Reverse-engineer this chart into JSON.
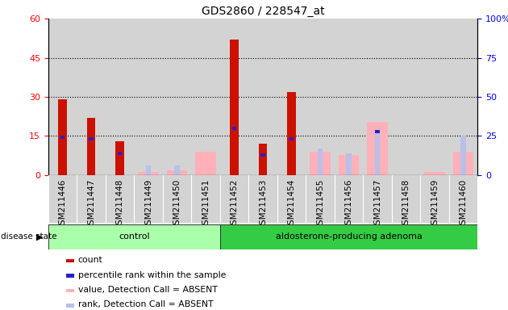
{
  "title": "GDS2860 / 228547_at",
  "samples": [
    "GSM211446",
    "GSM211447",
    "GSM211448",
    "GSM211449",
    "GSM211450",
    "GSM211451",
    "GSM211452",
    "GSM211453",
    "GSM211454",
    "GSM211455",
    "GSM211456",
    "GSM211457",
    "GSM211458",
    "GSM211459",
    "GSM211460"
  ],
  "count": [
    29,
    22,
    13,
    0,
    0,
    0,
    52,
    12,
    32,
    0,
    0,
    0,
    0,
    0,
    0
  ],
  "percentile_rank": [
    24,
    23,
    14,
    0,
    0,
    0,
    30,
    13,
    23,
    0,
    0,
    28,
    0,
    0,
    0
  ],
  "value_absent": [
    0,
    0,
    0,
    2,
    3,
    15,
    0,
    0,
    0,
    15,
    13,
    34,
    0,
    2,
    15
  ],
  "rank_absent": [
    0,
    0,
    0,
    6,
    6,
    0,
    0,
    0,
    0,
    17,
    14,
    27,
    0,
    0,
    25
  ],
  "control_count": 6,
  "group_labels": [
    "control",
    "aldosterone-producing adenoma"
  ],
  "ylim_left": [
    0,
    60
  ],
  "ylim_right": [
    0,
    100
  ],
  "yticks_left": [
    0,
    15,
    30,
    45,
    60
  ],
  "yticks_right": [
    0,
    25,
    50,
    75,
    100
  ],
  "ytick_labels_right": [
    "0",
    "25",
    "50",
    "75",
    "100%"
  ],
  "color_count": "#CC1100",
  "color_percentile": "#2222CC",
  "color_value_absent": "#FFB0B8",
  "color_rank_absent": "#B8C0E8",
  "bar_width": 0.55,
  "bg_color": "#D3D3D3",
  "disease_label": "disease state",
  "legend_items": [
    {
      "label": "count",
      "color": "#CC1100"
    },
    {
      "label": "percentile rank within the sample",
      "color": "#2222CC"
    },
    {
      "label": "value, Detection Call = ABSENT",
      "color": "#FFB0B8"
    },
    {
      "label": "rank, Detection Call = ABSENT",
      "color": "#B8C0E8"
    }
  ]
}
